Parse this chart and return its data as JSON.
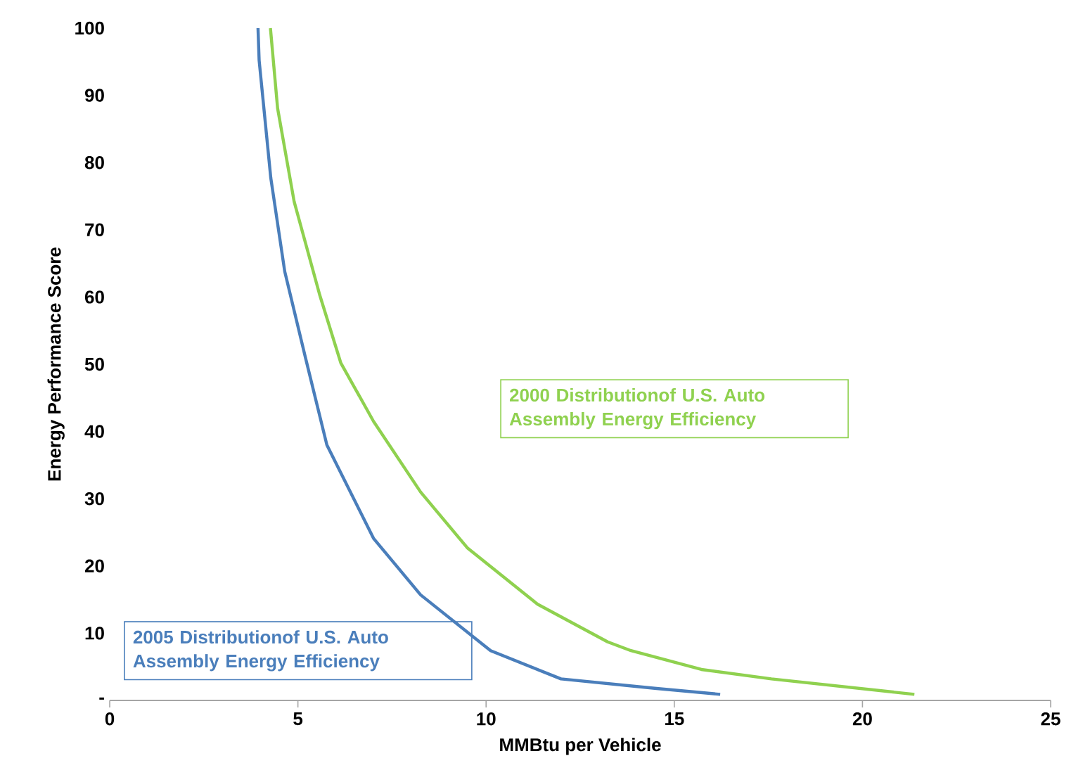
{
  "chart_data": {
    "type": "line",
    "xlabel": "MMBtu per Vehicle",
    "ylabel": "Energy Performance Score",
    "xlim": [
      0,
      25
    ],
    "xticks": [
      0,
      5,
      10,
      15,
      20,
      25
    ],
    "ylim": [
      0,
      100
    ],
    "yticks": [
      {
        "value": 0,
        "label": "-"
      },
      10,
      20,
      30,
      40,
      50,
      60,
      70,
      80,
      90,
      100
    ],
    "grid": false,
    "legend": false,
    "marker": "none",
    "line_style": "solid",
    "series": [
      {
        "name": "2000 Distributionof U.S. Auto Assembly Energy Efficiency",
        "color": "#8fd14f",
        "x": [
          4.27,
          4.46,
          4.9,
          5.58,
          6.14,
          7.01,
          8.26,
          9.5,
          11.37,
          13.23,
          13.85,
          15.72,
          17.58,
          21.38
        ],
        "values": [
          100,
          88.1,
          74.2,
          60.3,
          50.2,
          41.5,
          31.0,
          22.7,
          14.3,
          8.7,
          7.4,
          4.6,
          3.2,
          0.9
        ]
      },
      {
        "name": "2005 Distributionof U.S. Auto Assembly Energy Efficiency",
        "color": "#4a7ebb",
        "x": [
          3.94,
          3.97,
          4.28,
          4.65,
          5.2,
          5.77,
          7.01,
          8.26,
          10.12,
          11.99,
          14.48,
          16.22
        ],
        "values": [
          100,
          95.2,
          77.7,
          63.8,
          51.0,
          38.0,
          24.1,
          15.7,
          7.4,
          3.2,
          1.8,
          0.9
        ]
      }
    ]
  }
}
